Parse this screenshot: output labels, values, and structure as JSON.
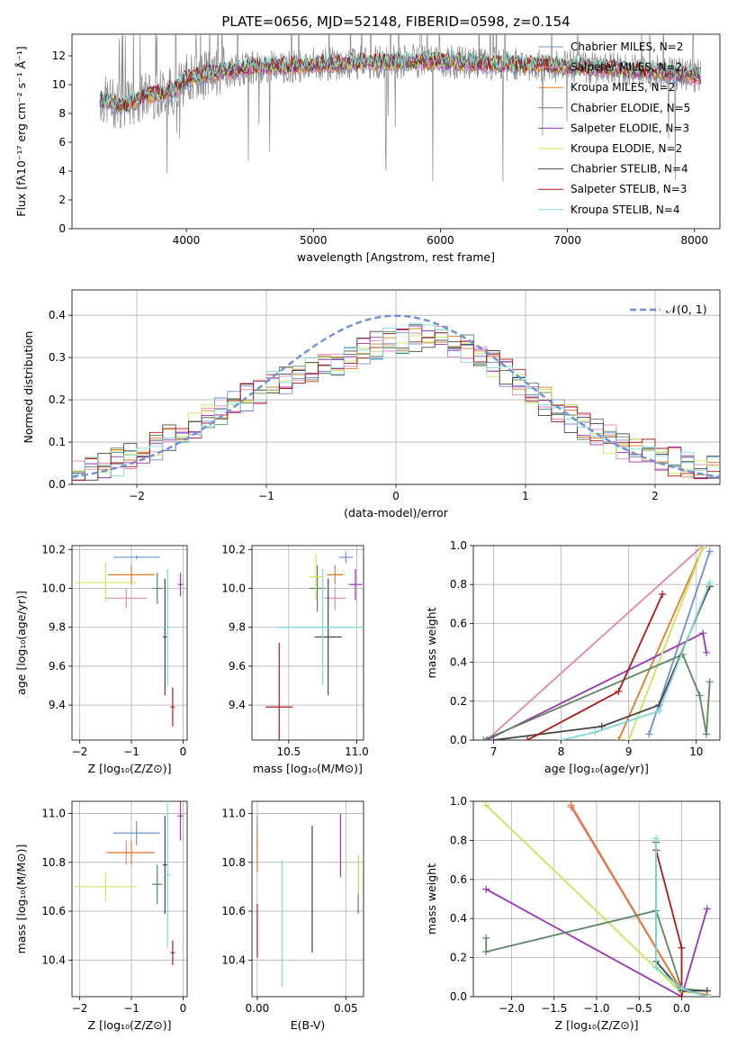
{
  "colors": {
    "chabrier_miles": "#6f8fd6",
    "salpeter_miles": "#e384b4",
    "kroupa_miles": "#e07b28",
    "chabrier_elodie": "#5b8760",
    "salpeter_elodie": "#9a35b6",
    "kroupa_elodie": "#cde45a",
    "chabrier_stelib": "#444444",
    "salpeter_stelib": "#aa1a1a",
    "kroupa_stelib": "#7fd8d8",
    "data": "#888888",
    "normal": "#6f8fd6"
  },
  "chart_data": [
    {
      "id": "spectrum",
      "type": "line",
      "title": "PLATE=0656, MJD=52148, FIBERID=0598, z=0.154",
      "xlabel": "wavelength [Angstrom, rest frame]",
      "ylabel": "Flux [fλ10⁻¹⁷ erg cm⁻² s⁻¹ Å⁻¹]",
      "xlim": [
        3100,
        8200
      ],
      "ylim": [
        0,
        13.5
      ],
      "xticks": [
        "4000",
        "5000",
        "6000",
        "7000",
        "8000"
      ],
      "yticks": [
        "0",
        "2",
        "4",
        "6",
        "8",
        "10",
        "12"
      ],
      "continuum": [
        [
          3320,
          9.0
        ],
        [
          3500,
          8.5
        ],
        [
          3700,
          9.3
        ],
        [
          3900,
          9.6
        ],
        [
          4000,
          10.4
        ],
        [
          4200,
          10.8
        ],
        [
          4500,
          11.2
        ],
        [
          4800,
          11.3
        ],
        [
          5000,
          11.4
        ],
        [
          5300,
          11.5
        ],
        [
          5600,
          11.6
        ],
        [
          6000,
          11.6
        ],
        [
          6300,
          11.5
        ],
        [
          6600,
          11.4
        ],
        [
          7000,
          11.3
        ],
        [
          7400,
          11.1
        ],
        [
          7800,
          10.8
        ],
        [
          8000,
          10.6
        ]
      ],
      "legend": [
        {
          "label": "Chabrier MILES, N_SSP=2",
          "color_key": "chabrier_miles"
        },
        {
          "label": "Salpeter MILES, N_SSP=2",
          "color_key": "salpeter_miles"
        },
        {
          "label": "Kroupa MILES, N_SSP=2",
          "color_key": "kroupa_miles"
        },
        {
          "label": "Chabrier ELODIE, N_SSP=5",
          "color_key": "chabrier_elodie"
        },
        {
          "label": "Salpeter ELODIE, N_SSP=3",
          "color_key": "salpeter_elodie"
        },
        {
          "label": "Kroupa ELODIE, N_SSP=2",
          "color_key": "kroupa_elodie"
        },
        {
          "label": "Chabrier STELIB, N_SSP=4",
          "color_key": "chabrier_stelib"
        },
        {
          "label": "Salpeter STELIB, N_SSP=3",
          "color_key": "salpeter_stelib"
        },
        {
          "label": "Kroupa STELIB, N_SSP=4",
          "color_key": "kroupa_stelib"
        }
      ]
    },
    {
      "id": "residuals",
      "type": "line",
      "xlabel": "(data-model)/error",
      "ylabel": "Normed distribution",
      "xlim": [
        -2.5,
        2.5
      ],
      "ylim": [
        0,
        0.46
      ],
      "xticks": [
        "−2",
        "−1",
        "0",
        "1",
        "2"
      ],
      "yticks": [
        "0.0",
        "0.1",
        "0.2",
        "0.3",
        "0.4"
      ],
      "legend": "𝒩(0, 1)",
      "grid": true
    },
    {
      "id": "age_vs_Z",
      "type": "scatter",
      "xlabel": "Z [log₁₀(Z/Z⊙)]",
      "ylabel": "age  [log₁₀(age/yr)]",
      "xlim": [
        -2.15,
        0.08
      ],
      "ylim": [
        9.22,
        10.22
      ],
      "xticks": [
        "−2",
        "−1",
        "0"
      ],
      "yticks": [
        "9.4",
        "9.6",
        "9.8",
        "10.0",
        "10.2"
      ],
      "points": [
        {
          "k": "chabrier_miles",
          "x": -0.9,
          "y": 10.16,
          "xe": 0.45,
          "ye": 0.01
        },
        {
          "k": "salpeter_miles",
          "x": -1.1,
          "y": 9.95,
          "xe": 0.4,
          "ye": 0.05
        },
        {
          "k": "kroupa_miles",
          "x": -1.0,
          "y": 10.07,
          "xe": 0.45,
          "ye": 0.05
        },
        {
          "k": "chabrier_elodie",
          "x": -0.5,
          "y": 10.0,
          "xe": 0.1,
          "ye": 0.08
        },
        {
          "k": "salpeter_elodie",
          "x": -0.05,
          "y": 10.02,
          "xe": 0.05,
          "ye": 0.06
        },
        {
          "k": "kroupa_elodie",
          "x": -1.5,
          "y": 10.03,
          "xe": 0.6,
          "ye": 0.1
        },
        {
          "k": "chabrier_stelib",
          "x": -0.35,
          "y": 9.75,
          "xe": 0.04,
          "ye": 0.3
        },
        {
          "k": "salpeter_stelib",
          "x": -0.2,
          "y": 9.39,
          "xe": 0.04,
          "ye": 0.1
        },
        {
          "k": "kroupa_stelib",
          "x": -0.3,
          "y": 9.8,
          "xe": 0.05,
          "ye": 0.3
        }
      ]
    },
    {
      "id": "age_vs_mass",
      "type": "scatter",
      "xlabel": "mass [log₁₀(M/M⊙)]",
      "xlim": [
        10.23,
        11.05
      ],
      "ylim": [
        9.22,
        10.22
      ],
      "xticks": [
        "10.5",
        "11.0"
      ],
      "yticks": [
        "9.4",
        "9.6",
        "9.8",
        "10.0",
        "10.2"
      ],
      "points": [
        {
          "k": "chabrier_miles",
          "x": 10.92,
          "y": 10.16,
          "xe": 0.05,
          "ye": 0.03
        },
        {
          "k": "salpeter_miles",
          "x": 10.84,
          "y": 9.95,
          "xe": 0.08,
          "ye": 0.06
        },
        {
          "k": "kroupa_miles",
          "x": 10.84,
          "y": 10.07,
          "xe": 0.06,
          "ye": 0.05
        },
        {
          "k": "chabrier_elodie",
          "x": 10.71,
          "y": 10.0,
          "xe": 0.06,
          "ye": 0.12
        },
        {
          "k": "salpeter_elodie",
          "x": 10.99,
          "y": 10.02,
          "xe": 0.05,
          "ye": 0.08
        },
        {
          "k": "kroupa_elodie",
          "x": 10.7,
          "y": 10.06,
          "xe": 0.05,
          "ye": 0.12
        },
        {
          "k": "chabrier_stelib",
          "x": 10.79,
          "y": 9.75,
          "xe": 0.1,
          "ye": 0.3
        },
        {
          "k": "salpeter_stelib",
          "x": 10.43,
          "y": 9.39,
          "xe": 0.1,
          "ye": 0.33
        },
        {
          "k": "kroupa_stelib",
          "x": 10.75,
          "y": 9.8,
          "xe": 0.35,
          "ye": 0.3
        }
      ]
    },
    {
      "id": "mass_weight_vs_age",
      "type": "line",
      "xlabel": "age  [log₁₀(age/yr)]",
      "ylabel": "mass weight",
      "xlim": [
        6.7,
        10.35
      ],
      "ylim": [
        0,
        1
      ],
      "xticks": [
        "7",
        "8",
        "9",
        "10"
      ],
      "yticks": [
        "0.0",
        "0.2",
        "0.4",
        "0.6",
        "0.8",
        "1.0"
      ],
      "series": [
        {
          "k": "salpeter_miles",
          "x": [
            6.9,
            10.1
          ],
          "y": [
            0.0,
            1.0
          ]
        },
        {
          "k": "kroupa_miles",
          "x": [
            8.85,
            10.1
          ],
          "y": [
            0.0,
            0.99
          ]
        },
        {
          "k": "chabrier_miles",
          "x": [
            9.3,
            10.2
          ],
          "y": [
            0.03,
            0.97
          ]
        },
        {
          "k": "salpeter_elodie",
          "x": [
            6.9,
            10.1,
            10.15
          ],
          "y": [
            0.0,
            0.55,
            0.45
          ]
        },
        {
          "k": "kroupa_elodie",
          "x": [
            9.0,
            10.1
          ],
          "y": [
            0.0,
            0.99
          ]
        },
        {
          "k": "chabrier_elodie",
          "x": [
            6.85,
            9.8,
            10.05,
            10.15,
            10.2
          ],
          "y": [
            0.0,
            0.44,
            0.23,
            0.03,
            0.3
          ]
        },
        {
          "k": "chabrier_stelib",
          "x": [
            7.0,
            8.6,
            9.45,
            10.2
          ],
          "y": [
            0.0,
            0.07,
            0.18,
            0.79
          ]
        },
        {
          "k": "salpeter_stelib",
          "x": [
            7.5,
            8.85,
            9.5
          ],
          "y": [
            0.0,
            0.25,
            0.75
          ]
        },
        {
          "k": "kroupa_stelib",
          "x": [
            8.0,
            8.5,
            9.45,
            10.2
          ],
          "y": [
            0.0,
            0.04,
            0.15,
            0.81
          ]
        }
      ]
    },
    {
      "id": "mass_vs_Z",
      "type": "scatter",
      "xlabel": "Z [log₁₀(Z/Z⊙)]",
      "ylabel": "mass [log₁₀(M/M⊙)]",
      "xlim": [
        -2.15,
        0.08
      ],
      "ylim": [
        10.25,
        11.05
      ],
      "xticks": [
        "−2",
        "−1",
        "0"
      ],
      "yticks": [
        "10.4",
        "10.6",
        "10.8",
        "11.0"
      ],
      "points": [
        {
          "k": "chabrier_miles",
          "x": -0.9,
          "y": 10.92,
          "xe": 0.45,
          "ye": 0.05
        },
        {
          "k": "salpeter_miles",
          "x": -1.1,
          "y": 10.84,
          "xe": 0.4,
          "ye": 0.05
        },
        {
          "k": "kroupa_miles",
          "x": -1.0,
          "y": 10.84,
          "xe": 0.45,
          "ye": 0.05
        },
        {
          "k": "chabrier_elodie",
          "x": -0.5,
          "y": 10.71,
          "xe": 0.1,
          "ye": 0.08
        },
        {
          "k": "salpeter_elodie",
          "x": -0.05,
          "y": 10.99,
          "xe": 0.05,
          "ye": 0.1
        },
        {
          "k": "kroupa_elodie",
          "x": -1.5,
          "y": 10.7,
          "xe": 0.6,
          "ye": 0.06
        },
        {
          "k": "chabrier_stelib",
          "x": -0.35,
          "y": 10.79,
          "xe": 0.04,
          "ye": 0.2
        },
        {
          "k": "salpeter_stelib",
          "x": -0.2,
          "y": 10.43,
          "xe": 0.04,
          "ye": 0.05
        },
        {
          "k": "kroupa_stelib",
          "x": -0.3,
          "y": 10.75,
          "xe": 0.05,
          "ye": 0.3
        }
      ]
    },
    {
      "id": "mass_vs_EBV",
      "type": "scatter",
      "xlabel": "E(B-V)",
      "xlim": [
        -0.003,
        0.06
      ],
      "ylim": [
        10.25,
        11.05
      ],
      "xticks": [
        "0.00",
        "0.05"
      ],
      "yticks": [
        "10.4",
        "10.6",
        "10.8",
        "11.0"
      ],
      "points": [
        {
          "k": "chabrier_miles",
          "x": 0.0,
          "y": 10.92,
          "xe": 0.0,
          "ye": 0.07
        },
        {
          "k": "salpeter_miles",
          "x": 0.0,
          "y": 10.84,
          "xe": 0.0,
          "ye": 0.06
        },
        {
          "k": "kroupa_miles",
          "x": 0.0,
          "y": 10.84,
          "xe": 0.0,
          "ye": 0.08
        },
        {
          "k": "chabrier_elodie",
          "x": 0.057,
          "y": 10.71,
          "xe": 0.0,
          "ye": 0.12
        },
        {
          "k": "salpeter_elodie",
          "x": 0.047,
          "y": 10.87,
          "xe": 0.0,
          "ye": 0.13
        },
        {
          "k": "kroupa_elodie",
          "x": 0.057,
          "y": 10.75,
          "xe": 0.0,
          "ye": 0.08
        },
        {
          "k": "chabrier_stelib",
          "x": 0.031,
          "y": 10.69,
          "xe": 0.0,
          "ye": 0.26
        },
        {
          "k": "salpeter_stelib",
          "x": 0.0,
          "y": 10.52,
          "xe": 0.0,
          "ye": 0.11
        },
        {
          "k": "kroupa_stelib",
          "x": 0.014,
          "y": 10.55,
          "xe": 0.0,
          "ye": 0.26
        }
      ]
    },
    {
      "id": "mass_weight_vs_Z",
      "type": "line",
      "xlabel": "Z [log₁₀(Z/Z⊙)]",
      "ylabel": "mass weight",
      "xlim": [
        -2.45,
        0.45
      ],
      "ylim": [
        0,
        1
      ],
      "xticks": [
        "−2.0",
        "−1.5",
        "−1.0",
        "−0.5",
        "0.0"
      ],
      "yticks": [
        "0.0",
        "0.2",
        "0.4",
        "0.6",
        "0.8",
        "1.0"
      ],
      "series": [
        {
          "k": "chabrier_miles",
          "x": [
            -1.3,
            0.0
          ],
          "y": [
            0.97,
            0.03
          ]
        },
        {
          "k": "salpeter_miles",
          "x": [
            -1.3,
            0.0
          ],
          "y": [
            0.97,
            0.03
          ]
        },
        {
          "k": "kroupa_miles",
          "x": [
            -1.3,
            0.0,
            0.3
          ],
          "y": [
            0.98,
            0.03,
            0.01
          ]
        },
        {
          "k": "salpeter_elodie",
          "x": [
            -2.3,
            0.0,
            0.3
          ],
          "y": [
            0.55,
            0.0,
            0.45
          ]
        },
        {
          "k": "kroupa_elodie",
          "x": [
            -2.3,
            0.0
          ],
          "y": [
            0.98,
            0.02
          ]
        },
        {
          "k": "chabrier_elodie",
          "x": [
            -2.3,
            -2.3,
            -0.3,
            0.0,
            0.3
          ],
          "y": [
            0.3,
            0.23,
            0.44,
            0.04,
            0.03
          ]
        },
        {
          "k": "chabrier_stelib",
          "x": [
            -0.3,
            -0.3,
            0.0,
            0.3
          ],
          "y": [
            0.79,
            0.18,
            0.03,
            0.03
          ]
        },
        {
          "k": "salpeter_stelib",
          "x": [
            -0.3,
            0.0,
            0.0
          ],
          "y": [
            0.75,
            0.25,
            0.0
          ]
        },
        {
          "k": "kroupa_stelib",
          "x": [
            -0.3,
            -0.3,
            0.0,
            0.3
          ],
          "y": [
            0.81,
            0.15,
            0.04,
            0.0
          ]
        }
      ]
    }
  ]
}
